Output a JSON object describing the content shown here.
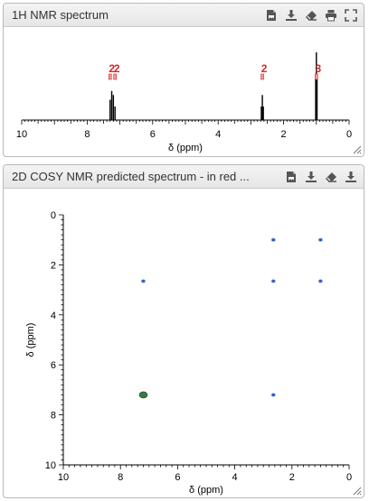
{
  "panels": [
    {
      "title": "1H NMR spectrum",
      "tools": [
        "export-image-icon",
        "download-icon",
        "eraser-icon",
        "print-icon",
        "fullscreen-icon"
      ]
    },
    {
      "title": "2D COSY NMR predicted spectrum - in red ...",
      "tools": [
        "export-image-icon",
        "download-icon",
        "eraser-icon",
        "download-icon"
      ]
    }
  ],
  "colors": {
    "peak": "#000000",
    "label": "#d62828",
    "cosy_cross": "#2457c8",
    "cosy_diag": "#3a7a3a"
  },
  "chart_data": [
    {
      "type": "line",
      "title": "1H NMR spectrum",
      "xlabel": "δ (ppm)",
      "xlim": [
        10,
        0
      ],
      "x_ticks": [
        "10",
        "8",
        "6",
        "4",
        "2",
        "0"
      ],
      "peaks": [
        {
          "shift": 7.3,
          "height": 0.3
        },
        {
          "shift": 7.25,
          "height": 0.43
        },
        {
          "shift": 7.2,
          "height": 0.37
        },
        {
          "shift": 7.15,
          "height": 0.2
        },
        {
          "shift": 2.68,
          "height": 0.2
        },
        {
          "shift": 2.65,
          "height": 0.37
        },
        {
          "shift": 2.62,
          "height": 0.2
        },
        {
          "shift": 1.02,
          "height": 0.65
        },
        {
          "shift": 1.0,
          "height": 1.0
        },
        {
          "shift": 0.98,
          "height": 0.65
        }
      ],
      "integrals": [
        {
          "shift": 7.3,
          "label": "2"
        },
        {
          "shift": 7.15,
          "label": "2"
        },
        {
          "shift": 2.65,
          "label": "2"
        },
        {
          "shift": 1.0,
          "label": "3"
        }
      ]
    },
    {
      "type": "scatter",
      "title": "2D COSY NMR predicted spectrum",
      "xlabel": "δ (ppm)",
      "ylabel": "δ (ppm)",
      "xlim": [
        10,
        0
      ],
      "ylim": [
        0,
        10
      ],
      "x_ticks": [
        "10",
        "8",
        "6",
        "4",
        "2",
        "0"
      ],
      "y_ticks": [
        "0",
        "2",
        "4",
        "6",
        "8",
        "10"
      ],
      "points": [
        {
          "x": 2.65,
          "y": 1.0,
          "kind": "cross"
        },
        {
          "x": 1.0,
          "y": 1.0,
          "kind": "cross"
        },
        {
          "x": 2.65,
          "y": 2.65,
          "kind": "cross"
        },
        {
          "x": 1.0,
          "y": 2.65,
          "kind": "cross"
        },
        {
          "x": 7.2,
          "y": 2.65,
          "kind": "cross"
        },
        {
          "x": 2.65,
          "y": 7.2,
          "kind": "cross"
        },
        {
          "x": 7.2,
          "y": 7.2,
          "kind": "diag"
        }
      ]
    }
  ]
}
